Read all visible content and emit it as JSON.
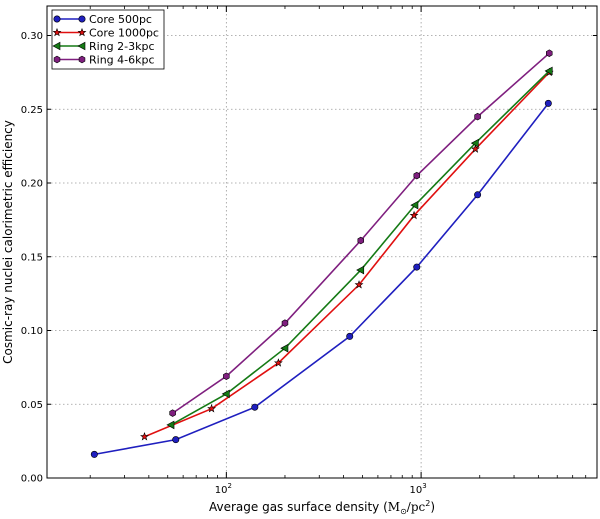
{
  "chart_data": {
    "type": "line",
    "xscale": "log",
    "xlim": [
      12,
      8000
    ],
    "ylim": [
      0,
      0.32
    ],
    "xlabel_main": "Average gas surface density (",
    "xlabel_unit_base": "M",
    "xlabel_unit_sub": "⊙",
    "xlabel_unit_rest": "/pc",
    "xlabel_unit_sup": "2",
    "xlabel_close": ")",
    "ylabel": "Cosmic-ray nuclei calorimetric efficiency",
    "x_ticks": [
      {
        "value": 100,
        "base": "10",
        "exp": "2"
      },
      {
        "value": 1000,
        "base": "10",
        "exp": "3"
      }
    ],
    "y_ticks": [
      {
        "value": 0.0,
        "label": "0.00"
      },
      {
        "value": 0.05,
        "label": "0.05"
      },
      {
        "value": 0.1,
        "label": "0.10"
      },
      {
        "value": 0.15,
        "label": "0.15"
      },
      {
        "value": 0.2,
        "label": "0.20"
      },
      {
        "value": 0.25,
        "label": "0.25"
      },
      {
        "value": 0.3,
        "label": "0.30"
      }
    ],
    "grid": true,
    "legend_position": "top-left",
    "series": [
      {
        "name": "Core 500pc",
        "color": "#1f1fbf",
        "marker": "circle",
        "x": [
          21,
          55,
          140,
          430,
          950,
          1950,
          4500
        ],
        "y": [
          0.016,
          0.026,
          0.048,
          0.096,
          0.143,
          0.192,
          0.254
        ]
      },
      {
        "name": "Core 1000pc",
        "color": "#e01010",
        "marker": "star",
        "x": [
          38,
          84,
          185,
          480,
          920,
          1900,
          4550
        ],
        "y": [
          0.028,
          0.047,
          0.078,
          0.131,
          0.178,
          0.223,
          0.275
        ]
      },
      {
        "name": "Ring 2-3kpc",
        "color": "#157a15",
        "marker": "triangle-left",
        "x": [
          52,
          100,
          200,
          490,
          930,
          1900,
          4550
        ],
        "y": [
          0.036,
          0.057,
          0.088,
          0.141,
          0.185,
          0.227,
          0.276
        ]
      },
      {
        "name": "Ring 4-6kpc",
        "color": "#7f1f7f",
        "marker": "hexagon",
        "x": [
          53,
          100,
          200,
          490,
          950,
          1950,
          4550
        ],
        "y": [
          0.044,
          0.069,
          0.105,
          0.161,
          0.205,
          0.245,
          0.288
        ]
      }
    ]
  }
}
